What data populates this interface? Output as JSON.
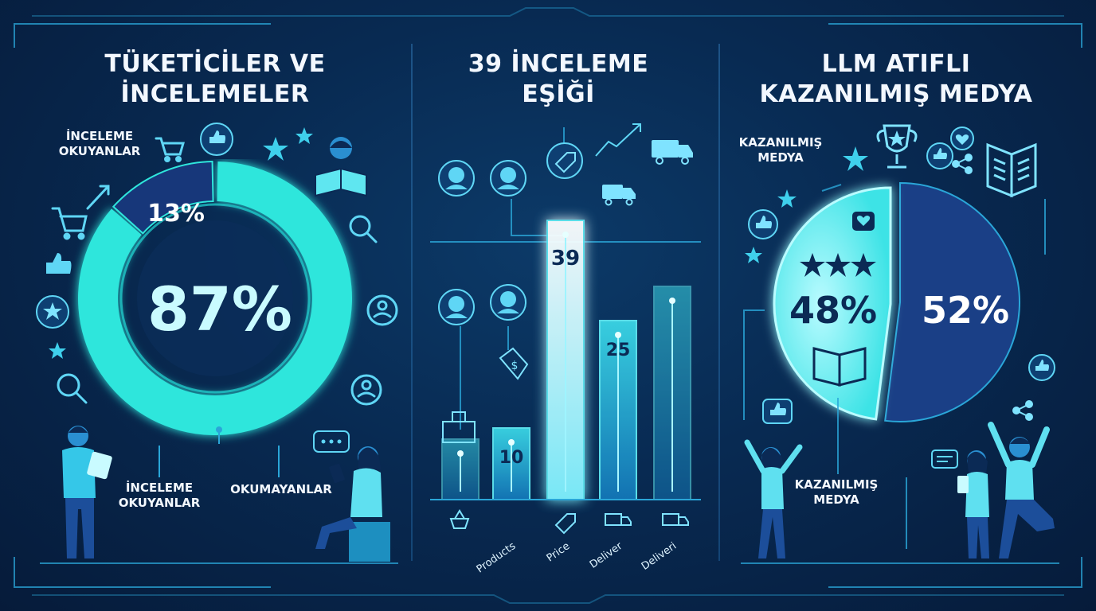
{
  "panels": {
    "left": {
      "title_l1": "TÜKETİCİLER VE",
      "title_l2": "İNCELEMELER"
    },
    "middle": {
      "title_l1": "39 İNCELEME",
      "title_l2": "EŞİĞİ"
    },
    "right": {
      "title_l1": "LLM ATIFLI",
      "title_l2": "KAZANILMIŞ MEDYA"
    }
  },
  "labels": {
    "left_top_l1": "İNCELEME",
    "left_top_l2": "OKUYANLAR",
    "left_bottom_a_l1": "İNCELEME",
    "left_bottom_a_l2": "OKUYANLAR",
    "left_bottom_b": "OKUMAYANLAR",
    "right_top_l1": "KAZANILMIŞ",
    "right_top_l2": "MEDYA",
    "right_bottom_l1": "KAZANILMIŞ",
    "right_bottom_l2": "MEDYA"
  },
  "chart_data": [
    {
      "type": "pie",
      "subtype": "donut",
      "slices": [
        {
          "label": "İNCELEME OKUYANLAR",
          "value": 87,
          "display": "87%",
          "color": "#2fe6dc"
        },
        {
          "label": "OKUMAYANLAR",
          "value": 13,
          "display": "13%",
          "color": "#17377a"
        }
      ]
    },
    {
      "type": "bar",
      "categories": [
        "",
        "Products",
        "Price",
        "Deliver",
        "Deliveri"
      ],
      "values": [
        null,
        10,
        39,
        25,
        null
      ],
      "value_labels": [
        "",
        "10",
        "39",
        "25",
        ""
      ],
      "colors": {
        "default": "#1aa9c8",
        "highlight": "#c8fbff"
      }
    },
    {
      "type": "pie",
      "slices": [
        {
          "label": "KAZANILMIŞ MEDYA",
          "value": 48,
          "display": "48%",
          "color": "#5ff0ea"
        },
        {
          "label": "",
          "value": 52,
          "display": "52%",
          "color": "#1a3f86"
        }
      ]
    }
  ],
  "icons": [
    "cart-icon",
    "thumbs-up-icon",
    "star-icon",
    "magnifier-icon",
    "user-icon",
    "book-icon",
    "truck-icon",
    "price-tag-icon",
    "trophy-icon",
    "heart-icon",
    "share-icon",
    "chat-icon"
  ]
}
